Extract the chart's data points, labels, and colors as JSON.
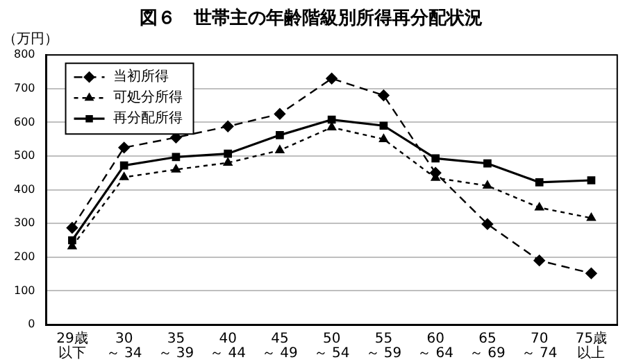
{
  "chart_data": {
    "type": "line",
    "title": "図６　世帯主の年齢階級別所得再分配状況",
    "ylabel": "（万円）",
    "categories": [
      "29歳以下",
      "30 ～ 34",
      "35 ～ 39",
      "40 ～ 44",
      "45 ～ 49",
      "50 ～ 54",
      "55 ～ 59",
      "60 ～ 64",
      "65 ～ 69",
      "70 ～ 74",
      "75歳以上"
    ],
    "series": [
      {
        "name": "当初所得",
        "color": "#000000",
        "marker": "diamond",
        "line_style": "dashed",
        "values": [
          287,
          525,
          555,
          588,
          625,
          730,
          680,
          450,
          298,
          190,
          152
        ]
      },
      {
        "name": "可処分所得",
        "color": "#000000",
        "marker": "triangle",
        "line_style": "dotted",
        "values": [
          232,
          437,
          460,
          480,
          517,
          585,
          550,
          435,
          412,
          347,
          316
        ]
      },
      {
        "name": "再分配所得",
        "color": "#000000",
        "marker": "square",
        "line_style": "solid",
        "values": [
          250,
          472,
          497,
          507,
          562,
          608,
          590,
          493,
          478,
          422,
          428
        ]
      }
    ],
    "ylim": [
      0,
      800
    ],
    "yticks": [
      0,
      100,
      200,
      300,
      400,
      500,
      600,
      700,
      800
    ],
    "grid": "y",
    "legend": "top left"
  }
}
